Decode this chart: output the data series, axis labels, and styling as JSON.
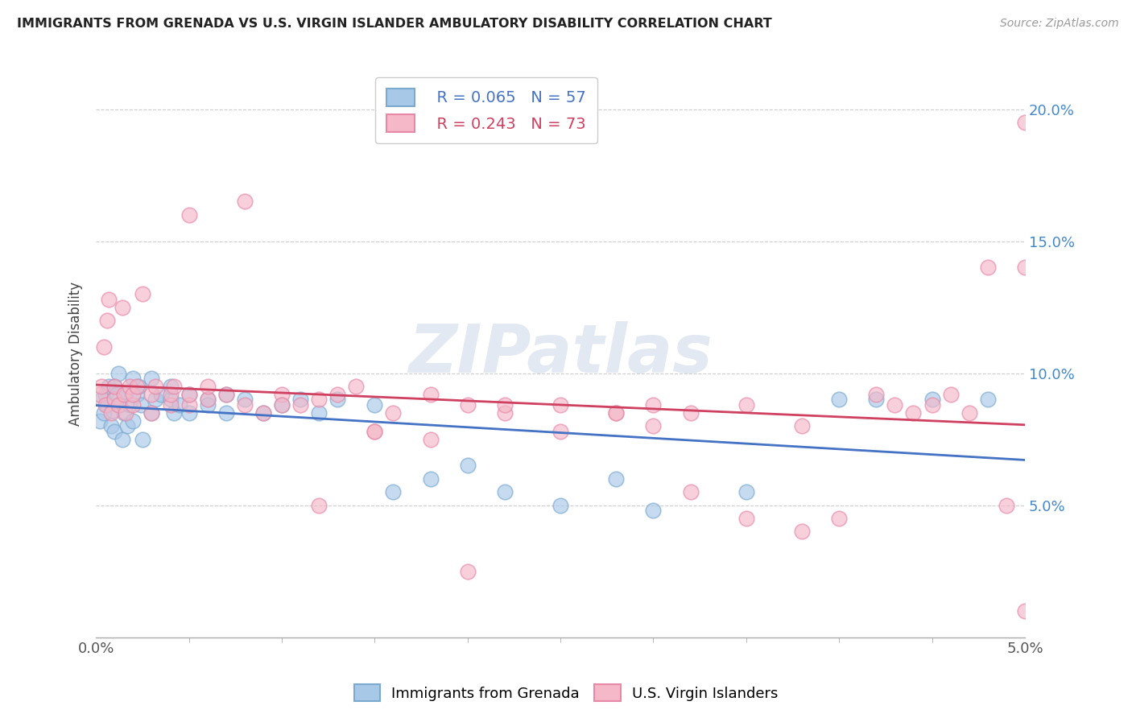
{
  "title": "IMMIGRANTS FROM GRENADA VS U.S. VIRGIN ISLANDER AMBULATORY DISABILITY CORRELATION CHART",
  "source": "Source: ZipAtlas.com",
  "ylabel": "Ambulatory Disability",
  "xlim": [
    0.0,
    0.05
  ],
  "ylim": [
    0.0,
    0.215
  ],
  "yticks": [
    0.05,
    0.1,
    0.15,
    0.2
  ],
  "ytick_labels": [
    "5.0%",
    "10.0%",
    "15.0%",
    "20.0%"
  ],
  "legend_r1": "R = 0.065",
  "legend_n1": "N = 57",
  "legend_r2": "R = 0.243",
  "legend_n2": "N = 73",
  "blue_color": "#a8c8e8",
  "pink_color": "#f4b8c8",
  "blue_edge": "#7aaad0",
  "pink_edge": "#e888a8",
  "line_blue": "#4472c4",
  "line_pink": "#d04060",
  "tick_color": "#4488cc",
  "watermark": "ZIPatlas",
  "blue_scatter_x": [
    0.0002,
    0.0003,
    0.0004,
    0.0005,
    0.0006,
    0.0007,
    0.0008,
    0.0009,
    0.001,
    0.001,
    0.0011,
    0.0012,
    0.0013,
    0.0014,
    0.0015,
    0.0016,
    0.0017,
    0.0018,
    0.002,
    0.002,
    0.0022,
    0.0023,
    0.0024,
    0.0025,
    0.003,
    0.003,
    0.0032,
    0.0035,
    0.004,
    0.004,
    0.0042,
    0.0045,
    0.005,
    0.005,
    0.006,
    0.006,
    0.007,
    0.007,
    0.008,
    0.009,
    0.01,
    0.011,
    0.012,
    0.013,
    0.015,
    0.016,
    0.018,
    0.02,
    0.022,
    0.025,
    0.028,
    0.03,
    0.035,
    0.04,
    0.042,
    0.045,
    0.048
  ],
  "blue_scatter_y": [
    0.082,
    0.09,
    0.085,
    0.092,
    0.088,
    0.095,
    0.08,
    0.086,
    0.078,
    0.095,
    0.092,
    0.1,
    0.088,
    0.075,
    0.085,
    0.092,
    0.08,
    0.088,
    0.098,
    0.082,
    0.092,
    0.095,
    0.088,
    0.075,
    0.098,
    0.085,
    0.09,
    0.092,
    0.09,
    0.095,
    0.085,
    0.088,
    0.092,
    0.085,
    0.09,
    0.088,
    0.092,
    0.085,
    0.09,
    0.085,
    0.088,
    0.09,
    0.085,
    0.09,
    0.088,
    0.055,
    0.06,
    0.065,
    0.055,
    0.05,
    0.06,
    0.048,
    0.055,
    0.09,
    0.09,
    0.09,
    0.09
  ],
  "pink_scatter_x": [
    0.0002,
    0.0003,
    0.0004,
    0.0005,
    0.0006,
    0.0007,
    0.0008,
    0.001,
    0.001,
    0.0012,
    0.0014,
    0.0015,
    0.0016,
    0.0018,
    0.002,
    0.002,
    0.0022,
    0.0025,
    0.003,
    0.003,
    0.0032,
    0.004,
    0.004,
    0.0042,
    0.005,
    0.005,
    0.006,
    0.006,
    0.007,
    0.008,
    0.009,
    0.01,
    0.011,
    0.012,
    0.013,
    0.014,
    0.015,
    0.016,
    0.018,
    0.02,
    0.022,
    0.025,
    0.028,
    0.03,
    0.032,
    0.035,
    0.038,
    0.04,
    0.042,
    0.043,
    0.044,
    0.045,
    0.046,
    0.047,
    0.048,
    0.049,
    0.05,
    0.05,
    0.05,
    0.012,
    0.02,
    0.035,
    0.005,
    0.008,
    0.01,
    0.015,
    0.025,
    0.03,
    0.038,
    0.018,
    0.022,
    0.028,
    0.032
  ],
  "pink_scatter_y": [
    0.092,
    0.095,
    0.11,
    0.088,
    0.12,
    0.128,
    0.085,
    0.09,
    0.095,
    0.088,
    0.125,
    0.092,
    0.085,
    0.095,
    0.088,
    0.092,
    0.095,
    0.13,
    0.085,
    0.092,
    0.095,
    0.088,
    0.092,
    0.095,
    0.088,
    0.092,
    0.09,
    0.095,
    0.092,
    0.088,
    0.085,
    0.092,
    0.088,
    0.09,
    0.092,
    0.095,
    0.078,
    0.085,
    0.075,
    0.088,
    0.085,
    0.078,
    0.085,
    0.088,
    0.085,
    0.088,
    0.08,
    0.045,
    0.092,
    0.088,
    0.085,
    0.088,
    0.092,
    0.085,
    0.14,
    0.05,
    0.195,
    0.01,
    0.14,
    0.05,
    0.025,
    0.045,
    0.16,
    0.165,
    0.088,
    0.078,
    0.088,
    0.08,
    0.04,
    0.092,
    0.088,
    0.085,
    0.055
  ]
}
